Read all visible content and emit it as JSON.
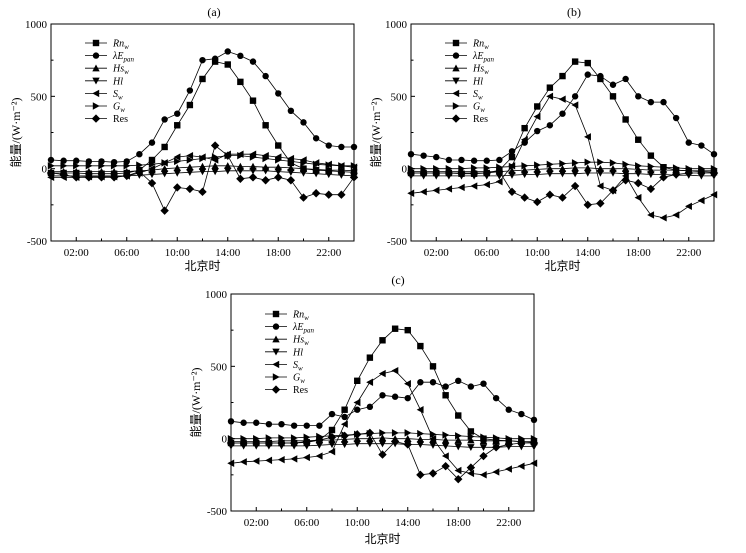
{
  "chart_data": [
    {
      "type": "line",
      "panel_label": "(a)",
      "xlabel": "北京时",
      "ylabel": "能量/(W·m⁻²)",
      "ylim": [
        -500,
        1000
      ],
      "xlim": [
        0,
        24
      ],
      "yticks": [
        -500,
        0,
        500,
        1000
      ],
      "xticks": [
        2,
        6,
        10,
        14,
        18,
        22
      ],
      "xtick_labels": [
        "02:00",
        "06:00",
        "10:00",
        "14:00",
        "18:00",
        "22:00"
      ],
      "x": [
        0,
        1,
        2,
        3,
        4,
        5,
        6,
        7,
        8,
        9,
        10,
        11,
        12,
        13,
        14,
        15,
        16,
        17,
        18,
        19,
        20,
        21,
        22,
        23,
        24
      ],
      "series": [
        {
          "name": "Rn_w",
          "marker": "square",
          "values": [
            -30,
            -30,
            -30,
            -35,
            -35,
            -35,
            -30,
            -10,
            60,
            150,
            300,
            440,
            620,
            740,
            720,
            600,
            470,
            300,
            160,
            40,
            0,
            -10,
            -15,
            -20,
            -25
          ]
        },
        {
          "name": "λE_pan",
          "marker": "circle",
          "values": [
            60,
            55,
            55,
            50,
            50,
            45,
            50,
            100,
            180,
            340,
            380,
            540,
            750,
            760,
            810,
            780,
            740,
            640,
            520,
            400,
            320,
            210,
            160,
            150,
            150
          ]
        },
        {
          "name": "Hs_w",
          "marker": "triangle-up",
          "values": [
            -20,
            -20,
            -20,
            -20,
            -20,
            -20,
            -20,
            -15,
            -10,
            0,
            5,
            10,
            15,
            20,
            20,
            15,
            15,
            10,
            10,
            5,
            0,
            -5,
            -10,
            -10,
            -15
          ]
        },
        {
          "name": "Hl",
          "marker": "triangle-down",
          "values": [
            -50,
            -50,
            -50,
            -50,
            -50,
            -50,
            -50,
            -45,
            -40,
            -35,
            -30,
            -25,
            -20,
            -20,
            -15,
            -15,
            -15,
            -15,
            -20,
            -25,
            -30,
            -35,
            -40,
            -45,
            -50
          ]
        },
        {
          "name": "S_w",
          "marker": "triangle-left",
          "values": [
            -60,
            -60,
            -60,
            -55,
            -55,
            -55,
            -50,
            -30,
            0,
            40,
            80,
            90,
            80,
            60,
            100,
            100,
            100,
            90,
            80,
            70,
            60,
            40,
            30,
            20,
            10
          ]
        },
        {
          "name": "G_w",
          "marker": "triangle-right",
          "values": [
            20,
            20,
            20,
            20,
            20,
            20,
            20,
            25,
            30,
            40,
            50,
            60,
            70,
            80,
            90,
            90,
            80,
            70,
            60,
            50,
            40,
            30,
            25,
            20,
            20
          ]
        },
        {
          "name": "Res",
          "marker": "diamond",
          "values": [
            -30,
            -40,
            -60,
            -60,
            -60,
            -60,
            -50,
            -20,
            -100,
            -290,
            -130,
            -140,
            -160,
            160,
            90,
            -70,
            -60,
            -80,
            -60,
            -80,
            -200,
            -170,
            -180,
            -180,
            -60
          ]
        }
      ]
    },
    {
      "type": "line",
      "panel_label": "(b)",
      "xlabel": "北京时",
      "ylabel": "能量/(W·m⁻²)",
      "ylim": [
        -500,
        1000
      ],
      "xlim": [
        0,
        24
      ],
      "yticks": [
        -500,
        0,
        500,
        1000
      ],
      "xticks": [
        2,
        6,
        10,
        14,
        18,
        22
      ],
      "xtick_labels": [
        "02:00",
        "06:00",
        "10:00",
        "14:00",
        "18:00",
        "22:00"
      ],
      "x": [
        0,
        1,
        2,
        3,
        4,
        5,
        6,
        7,
        8,
        9,
        10,
        11,
        12,
        13,
        14,
        15,
        16,
        17,
        18,
        19,
        20,
        21,
        22,
        23,
        24
      ],
      "series": [
        {
          "name": "Rn_w",
          "marker": "square",
          "values": [
            -30,
            -30,
            -30,
            -30,
            -35,
            -35,
            -30,
            -10,
            80,
            280,
            430,
            560,
            640,
            740,
            730,
            620,
            500,
            340,
            200,
            90,
            10,
            -10,
            -15,
            -20,
            -25
          ]
        },
        {
          "name": "λE_pan",
          "marker": "circle",
          "values": [
            100,
            90,
            80,
            60,
            60,
            55,
            55,
            60,
            120,
            180,
            260,
            300,
            380,
            500,
            650,
            640,
            580,
            620,
            500,
            460,
            460,
            350,
            180,
            160,
            100
          ]
        },
        {
          "name": "Hs_w",
          "marker": "triangle-up",
          "values": [
            -20,
            -20,
            -20,
            -20,
            -20,
            -20,
            -20,
            -20,
            -15,
            -10,
            -5,
            0,
            0,
            5,
            5,
            0,
            0,
            0,
            -5,
            -10,
            -10,
            -10,
            -15,
            -15,
            -15
          ]
        },
        {
          "name": "Hl",
          "marker": "triangle-down",
          "values": [
            -50,
            -50,
            -50,
            -50,
            -50,
            -50,
            -50,
            -50,
            -45,
            -40,
            -40,
            -35,
            -35,
            -35,
            -30,
            -30,
            -30,
            -35,
            -35,
            -40,
            -40,
            -45,
            -45,
            -50,
            -50
          ]
        },
        {
          "name": "S_w",
          "marker": "triangle-left",
          "values": [
            -170,
            -160,
            -150,
            -140,
            -130,
            -120,
            -110,
            -90,
            20,
            200,
            360,
            500,
            480,
            440,
            220,
            -120,
            -150,
            -50,
            -200,
            -320,
            -340,
            -320,
            -260,
            -220,
            -180
          ]
        },
        {
          "name": "G_w",
          "marker": "triangle-right",
          "values": [
            0,
            0,
            0,
            0,
            0,
            5,
            5,
            10,
            15,
            20,
            25,
            30,
            35,
            40,
            45,
            45,
            40,
            30,
            20,
            15,
            10,
            5,
            0,
            0,
            0
          ]
        },
        {
          "name": "Res",
          "marker": "diamond",
          "values": [
            -30,
            -30,
            -30,
            -30,
            -30,
            -30,
            -30,
            -20,
            -160,
            -200,
            -230,
            -180,
            -200,
            -120,
            -250,
            -240,
            -150,
            -80,
            -100,
            -140,
            -60,
            -40,
            -30,
            -30,
            -30
          ]
        }
      ]
    },
    {
      "type": "line",
      "panel_label": "(c)",
      "xlabel": "北京时",
      "ylabel": "能量/(W·m⁻²)",
      "ylim": [
        -500,
        1000
      ],
      "xlim": [
        0,
        24
      ],
      "yticks": [
        -500,
        0,
        500,
        1000
      ],
      "xticks": [
        2,
        6,
        10,
        14,
        18,
        22
      ],
      "xtick_labels": [
        "02:00",
        "06:00",
        "10:00",
        "14:00",
        "18:00",
        "22:00"
      ],
      "x": [
        0,
        1,
        2,
        3,
        4,
        5,
        6,
        7,
        8,
        9,
        10,
        11,
        12,
        13,
        14,
        15,
        16,
        17,
        18,
        19,
        20,
        21,
        22,
        23,
        24
      ],
      "series": [
        {
          "name": "Rn_w",
          "marker": "square",
          "values": [
            -30,
            -30,
            -30,
            -30,
            -30,
            -30,
            -25,
            -10,
            60,
            200,
            400,
            560,
            680,
            760,
            750,
            640,
            500,
            300,
            160,
            50,
            0,
            -10,
            -15,
            -20,
            -25
          ]
        },
        {
          "name": "λE_pan",
          "marker": "circle",
          "values": [
            120,
            110,
            110,
            100,
            100,
            90,
            90,
            90,
            170,
            150,
            200,
            220,
            300,
            290,
            280,
            390,
            390,
            360,
            400,
            360,
            380,
            280,
            200,
            170,
            130
          ]
        },
        {
          "name": "Hs_w",
          "marker": "triangle-up",
          "values": [
            -20,
            -20,
            -20,
            -20,
            -15,
            -15,
            -15,
            -10,
            -10,
            -5,
            0,
            0,
            5,
            0,
            0,
            -5,
            -5,
            -10,
            -10,
            -10,
            -15,
            -15,
            -15,
            -20,
            -20
          ]
        },
        {
          "name": "Hl",
          "marker": "triangle-down",
          "values": [
            -50,
            -50,
            -50,
            -50,
            -50,
            -50,
            -50,
            -45,
            -40,
            -40,
            -35,
            -35,
            -35,
            -35,
            -40,
            -40,
            -45,
            -50,
            -55,
            -60,
            -60,
            -60,
            -55,
            -55,
            -55
          ]
        },
        {
          "name": "S_w",
          "marker": "triangle-left",
          "values": [
            -170,
            -160,
            -155,
            -150,
            -145,
            -140,
            -130,
            -120,
            -90,
            100,
            250,
            390,
            450,
            470,
            380,
            200,
            0,
            -120,
            -220,
            -240,
            -250,
            -230,
            -210,
            -190,
            -170
          ]
        },
        {
          "name": "G_w",
          "marker": "triangle-right",
          "values": [
            0,
            0,
            0,
            5,
            5,
            5,
            10,
            15,
            20,
            25,
            30,
            35,
            40,
            40,
            40,
            35,
            30,
            25,
            20,
            15,
            10,
            5,
            0,
            0,
            0
          ]
        },
        {
          "name": "Res",
          "marker": "diamond",
          "values": [
            -30,
            -30,
            -30,
            -30,
            -30,
            -30,
            -20,
            -10,
            10,
            20,
            30,
            40,
            -110,
            -20,
            -40,
            -250,
            -240,
            -190,
            -280,
            -200,
            -120,
            -60,
            -40,
            -30,
            -30
          ]
        }
      ]
    }
  ]
}
